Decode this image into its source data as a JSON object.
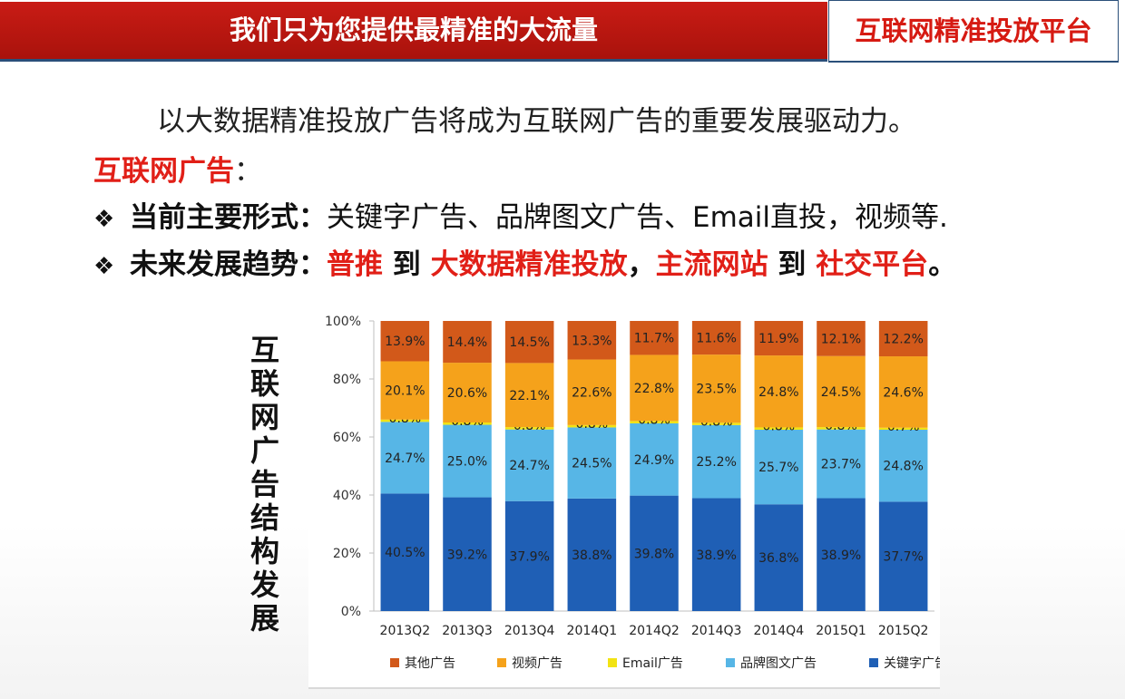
{
  "header": {
    "left_title": "我们只为您提供最精准的大流量",
    "right_title": "互联网精准投放平台"
  },
  "body": {
    "intro": "以大数据精准投放广告将成为互联网广告的重要发展驱动力。",
    "heading": "互联网广告",
    "heading_colon": "：",
    "bullet_symbol": "❖",
    "bullet1": {
      "label": "当前主要形式：",
      "text": "关键字广告、品牌图文广告、Email直投，视频等."
    },
    "bullet2": {
      "label": "未来发展趋势：",
      "part1": "普推",
      "sep1": " 到 ",
      "part2": "大数据精准投放",
      "comma": "，",
      "part3": "主流网站",
      "sep2": " 到 ",
      "part4": "社交平台",
      "end": "。"
    },
    "chart_side_title": "互联网广告结构发展"
  },
  "chart_data": {
    "type": "bar",
    "stacked": true,
    "categories": [
      "2013Q2",
      "2013Q3",
      "2013Q4",
      "2014Q1",
      "2014Q2",
      "2014Q3",
      "2014Q4",
      "2015Q1",
      "2015Q2"
    ],
    "series": [
      {
        "name": "关键字广告",
        "color": "#1f5fb5",
        "values": [
          40.5,
          39.2,
          37.9,
          38.8,
          39.8,
          38.9,
          36.8,
          38.9,
          37.7
        ]
      },
      {
        "name": "品牌图文广告",
        "color": "#57b6e6",
        "values": [
          24.7,
          25.0,
          24.7,
          24.5,
          24.9,
          25.2,
          25.7,
          23.7,
          24.8
        ]
      },
      {
        "name": "Email广告",
        "color": "#f2e313",
        "values": [
          0.8,
          0.8,
          0.8,
          0.8,
          0.8,
          0.8,
          0.8,
          0.8,
          0.7
        ]
      },
      {
        "name": "视频广告",
        "color": "#f5a21b",
        "values": [
          20.1,
          20.6,
          22.1,
          22.6,
          22.8,
          23.5,
          24.8,
          24.5,
          24.6
        ]
      },
      {
        "name": "其他广告",
        "color": "#d2591a",
        "values": [
          13.9,
          14.4,
          14.5,
          13.3,
          11.7,
          11.6,
          11.9,
          12.1,
          12.2
        ]
      }
    ],
    "legend_order": [
      "其他广告",
      "视频广告",
      "Email广告",
      "品牌图文广告",
      "关键字广告"
    ],
    "yticks": [
      "0%",
      "20%",
      "40%",
      "60%",
      "80%",
      "100%"
    ],
    "ylim": [
      0,
      100
    ],
    "grid": false,
    "legend_position": "bottom"
  }
}
